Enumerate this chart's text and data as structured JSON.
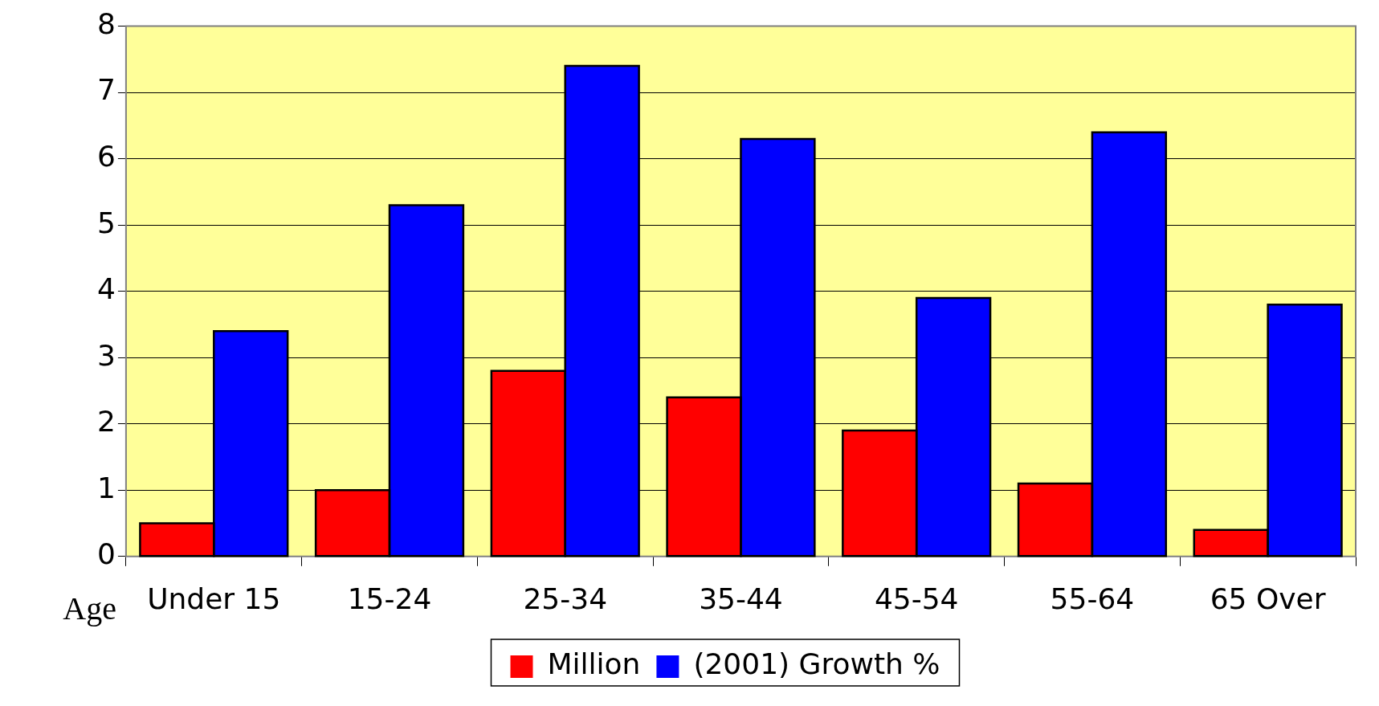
{
  "chart_data": {
    "type": "bar",
    "xlabel": "Age",
    "categories": [
      "Under 15",
      "15-24",
      "25-34",
      "35-44",
      "45-54",
      "55-64",
      "65 Over"
    ],
    "series": [
      {
        "name": "Million",
        "color": "#ff0000",
        "values": [
          0.5,
          1.0,
          2.8,
          2.4,
          1.9,
          1.1,
          0.4
        ]
      },
      {
        "name": "(2001) Growth %",
        "color": "#0000ff",
        "values": [
          3.4,
          5.3,
          7.4,
          6.3,
          3.9,
          6.4,
          3.8
        ]
      }
    ],
    "ylim": [
      0,
      8
    ],
    "yticks": [
      0,
      1,
      2,
      3,
      4,
      5,
      6,
      7,
      8
    ],
    "grid": "y",
    "legend": "bottom"
  }
}
